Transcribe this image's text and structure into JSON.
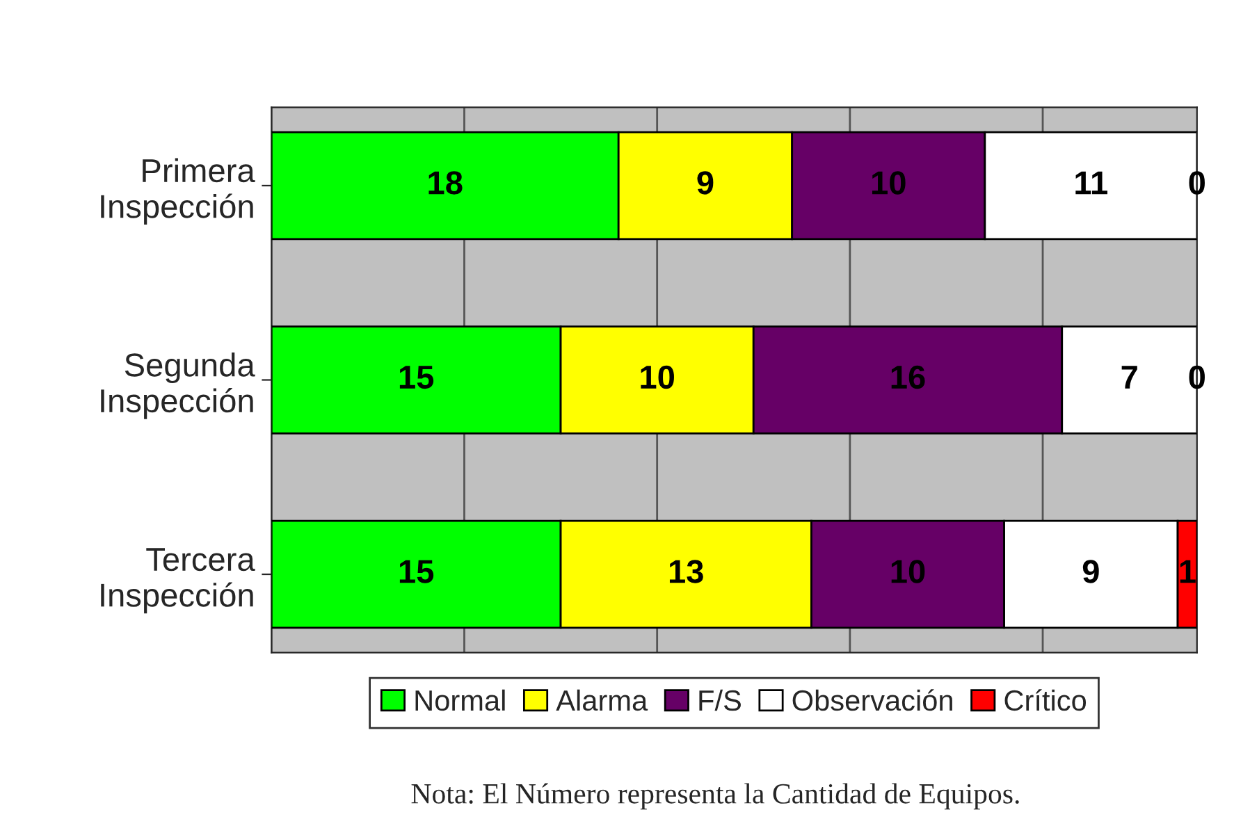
{
  "chart_data": {
    "type": "bar",
    "orientation": "horizontal",
    "stacked": true,
    "data_labels": true,
    "grid": "x",
    "tick_labels": "y",
    "legend": "bottom",
    "categories": [
      "Primera\nInspección",
      "Segunda\nInspección",
      "Tercera\nInspección"
    ],
    "series": [
      {
        "name": "Normal",
        "color": "#00ff00",
        "values": [
          18,
          15,
          15
        ]
      },
      {
        "name": "Alarma",
        "color": "#ffff00",
        "values": [
          9,
          10,
          13
        ]
      },
      {
        "name": "F/S",
        "color": "#660066",
        "values": [
          10,
          16,
          10
        ]
      },
      {
        "name": "Observación",
        "color": "#ffffff",
        "values": [
          11,
          7,
          9
        ]
      },
      {
        "name": "Crítico",
        "color": "#ff0000",
        "values": [
          0,
          0,
          1
        ]
      }
    ],
    "annotations": [
      "Nota: El Número representa la Cantidad de Equipos."
    ]
  }
}
